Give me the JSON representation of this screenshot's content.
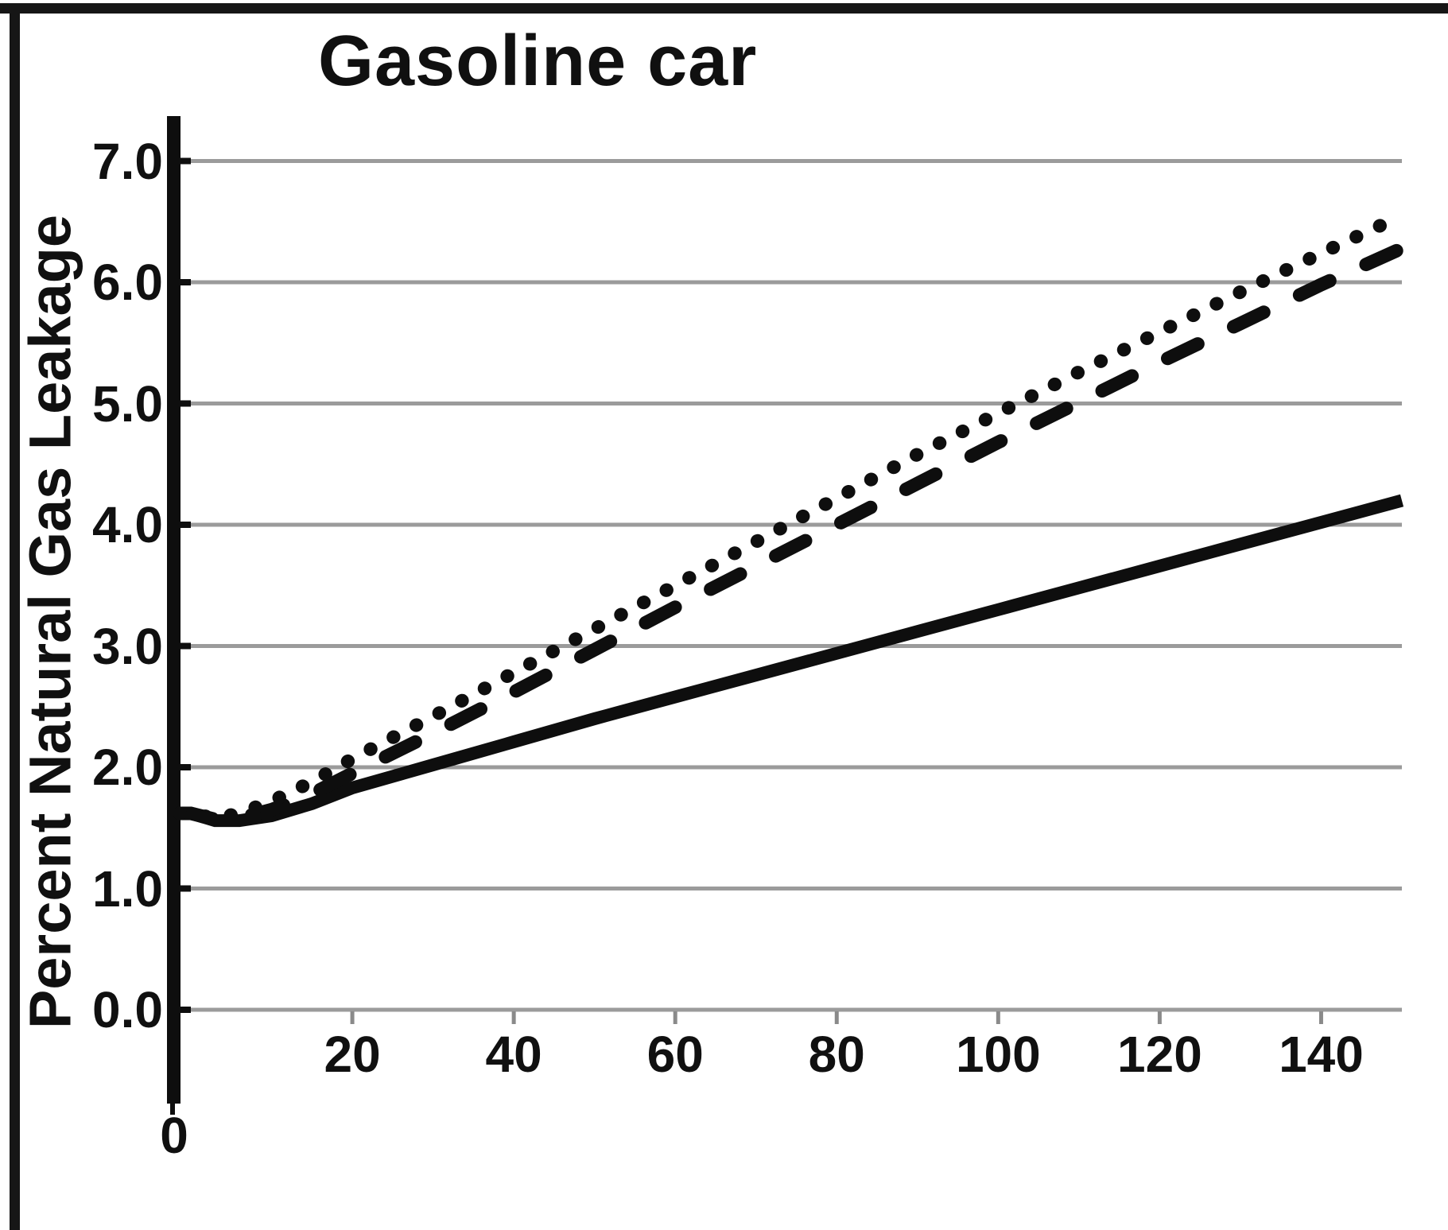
{
  "title": "Gasoline car",
  "y_axis": {
    "label": "Percent Natural Gas Leakage",
    "ticks": [
      "7.0",
      "6.0",
      "5.0",
      "4.0",
      "3.0",
      "2.0",
      "1.0",
      "0.0"
    ],
    "tick_values": [
      7,
      6,
      5,
      4,
      3,
      2,
      1,
      0
    ]
  },
  "x_axis": {
    "ticks": [
      "0",
      "20",
      "40",
      "60",
      "80",
      "100",
      "120",
      "140"
    ],
    "tick_values": [
      0,
      20,
      40,
      60,
      80,
      100,
      120,
      140
    ]
  },
  "colors": {
    "line": "#0e0e0e",
    "grid": "#9b9b9b",
    "frame": "#161616",
    "background": "#ffffff"
  },
  "chart_data": {
    "type": "line",
    "title": "Gasoline car",
    "xlabel": "",
    "ylabel": "Percent Natural Gas Leakage",
    "xlim": [
      0,
      150
    ],
    "ylim": [
      0,
      7.5
    ],
    "grid": true,
    "legend_position": "none",
    "x": [
      0,
      3,
      6,
      10,
      15,
      20,
      30,
      40,
      50,
      60,
      70,
      80,
      90,
      100,
      110,
      120,
      130,
      140,
      150
    ],
    "series": [
      {
        "name": "solid line",
        "style": "solid",
        "values": [
          1.62,
          1.56,
          1.56,
          1.6,
          1.7,
          1.83,
          2.02,
          2.21,
          2.4,
          2.58,
          2.76,
          2.94,
          3.12,
          3.3,
          3.48,
          3.66,
          3.84,
          4.02,
          4.2
        ]
      },
      {
        "name": "dashed line",
        "style": "dashed",
        "values": [
          1.62,
          1.57,
          1.58,
          1.65,
          1.78,
          1.95,
          2.28,
          2.62,
          2.97,
          3.32,
          3.66,
          4.0,
          4.34,
          4.68,
          5.01,
          5.34,
          5.66,
          5.98,
          6.28
        ]
      },
      {
        "name": "dotted line",
        "style": "dotted",
        "values": [
          1.62,
          1.58,
          1.62,
          1.72,
          1.88,
          2.07,
          2.42,
          2.78,
          3.14,
          3.5,
          3.86,
          4.22,
          4.58,
          4.92,
          5.26,
          5.59,
          5.92,
          6.24,
          6.55
        ]
      }
    ]
  }
}
